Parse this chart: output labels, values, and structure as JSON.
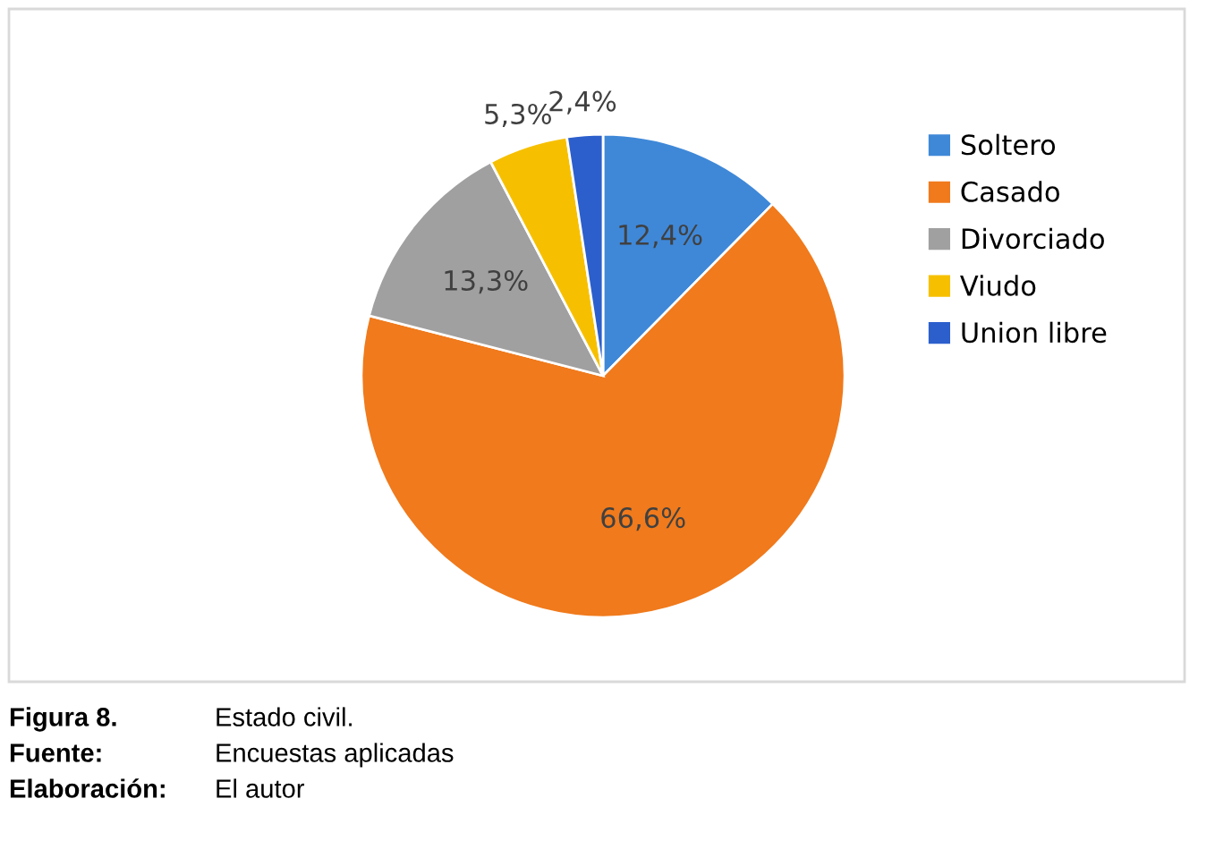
{
  "chart_data": {
    "type": "pie",
    "categories": [
      "Soltero",
      "Casado",
      "Divorciado",
      "Viudo",
      "Union libre"
    ],
    "values": [
      12.4,
      66.6,
      13.3,
      5.3,
      2.4
    ],
    "colors": [
      "#3f88d8",
      "#f07a1c",
      "#a0a0a0",
      "#f6c000",
      "#2c5fcc"
    ],
    "value_labels": [
      "12,4%",
      "66,6%",
      "13,3%",
      "5,3%",
      "2,4%"
    ],
    "legend": "right",
    "annotations": [
      "Figura 8.",
      "Estado civil.",
      "Fuente:",
      "Encuestas aplicadas",
      "Elaboración:",
      "El autor"
    ]
  }
}
